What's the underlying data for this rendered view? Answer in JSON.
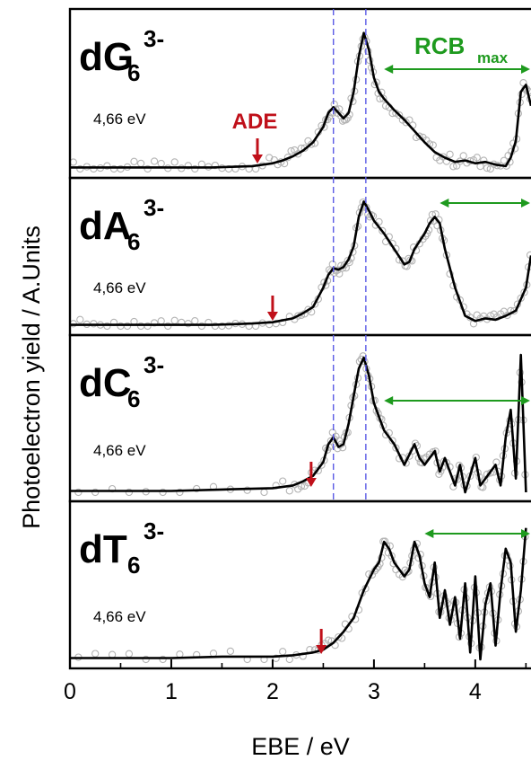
{
  "chart_data": {
    "type": "line",
    "xlabel": "EBE / eV",
    "ylabel": "Photoelectron yield / A.Units",
    "xlim": [
      0,
      4.55
    ],
    "xticks": [
      "0",
      "1",
      "2",
      "3",
      "4"
    ],
    "xtick_values": [
      0,
      1,
      2,
      3,
      4
    ],
    "grid": false,
    "dashed_reference_lines_x": [
      2.6,
      2.92
    ],
    "annotations": {
      "ade_text": "ADE",
      "rcb_main": "RCB",
      "rcb_sub": "max"
    },
    "colors": {
      "curve": "#000000",
      "points": "#b4b4b4",
      "ade": "#c0101a",
      "rcb": "#1e9a1e",
      "dashed": "#5a5ae6"
    },
    "panels": [
      {
        "label_main": "dG",
        "label_sub": "6",
        "label_sup": "3-",
        "energy": "4,66 eV",
        "ade_arrow_x": 1.85,
        "rcb_arrow": [
          3.1,
          4.55
        ],
        "x": [
          0,
          0.2,
          0.4,
          0.6,
          0.8,
          1.0,
          1.2,
          1.4,
          1.6,
          1.8,
          2.0,
          2.1,
          2.2,
          2.3,
          2.4,
          2.5,
          2.55,
          2.6,
          2.65,
          2.7,
          2.75,
          2.8,
          2.85,
          2.9,
          2.95,
          3.0,
          3.05,
          3.1,
          3.2,
          3.3,
          3.4,
          3.5,
          3.6,
          3.7,
          3.8,
          3.9,
          4.0,
          4.1,
          4.2,
          4.3,
          4.35,
          4.4,
          4.45,
          4.5,
          4.55
        ],
        "y": [
          0.01,
          0.01,
          0.01,
          0.01,
          0.01,
          0.01,
          0.01,
          0.01,
          0.015,
          0.02,
          0.04,
          0.06,
          0.09,
          0.13,
          0.19,
          0.3,
          0.4,
          0.44,
          0.4,
          0.36,
          0.4,
          0.55,
          0.8,
          0.97,
          0.85,
          0.65,
          0.55,
          0.5,
          0.42,
          0.35,
          0.27,
          0.19,
          0.12,
          0.08,
          0.05,
          0.06,
          0.04,
          0.05,
          0.03,
          0.02,
          0.08,
          0.2,
          0.55,
          0.6,
          0.45
        ]
      },
      {
        "label_main": "dA",
        "label_sub": "6",
        "label_sup": "3-",
        "energy": "4,66 eV",
        "ade_arrow_x": 2.0,
        "rcb_arrow": [
          3.65,
          4.55
        ],
        "x": [
          0,
          0.2,
          0.4,
          0.6,
          0.8,
          1.0,
          1.2,
          1.4,
          1.6,
          1.8,
          2.0,
          2.2,
          2.3,
          2.4,
          2.5,
          2.55,
          2.6,
          2.65,
          2.7,
          2.75,
          2.8,
          2.85,
          2.9,
          2.95,
          3.0,
          3.1,
          3.2,
          3.3,
          3.35,
          3.4,
          3.5,
          3.55,
          3.6,
          3.65,
          3.7,
          3.8,
          3.9,
          4.0,
          4.1,
          4.2,
          4.3,
          4.4,
          4.5,
          4.55
        ],
        "y": [
          0.01,
          0.01,
          0.01,
          0.01,
          0.01,
          0.01,
          0.01,
          0.01,
          0.015,
          0.02,
          0.03,
          0.06,
          0.1,
          0.15,
          0.3,
          0.4,
          0.45,
          0.44,
          0.46,
          0.52,
          0.62,
          0.85,
          0.97,
          0.9,
          0.82,
          0.72,
          0.6,
          0.48,
          0.5,
          0.6,
          0.72,
          0.8,
          0.85,
          0.8,
          0.6,
          0.3,
          0.08,
          0.04,
          0.06,
          0.05,
          0.08,
          0.12,
          0.3,
          0.55
        ]
      },
      {
        "label_main": "dC",
        "label_sub": "6",
        "label_sup": "3-",
        "energy": "4,66 eV",
        "ade_arrow_x": 2.38,
        "rcb_arrow": [
          3.1,
          4.55
        ],
        "x": [
          0,
          0.5,
          1.0,
          1.5,
          2.0,
          2.2,
          2.3,
          2.4,
          2.5,
          2.55,
          2.6,
          2.65,
          2.7,
          2.75,
          2.8,
          2.85,
          2.9,
          2.95,
          3.0,
          3.05,
          3.1,
          3.2,
          3.3,
          3.4,
          3.45,
          3.5,
          3.6,
          3.65,
          3.7,
          3.8,
          3.85,
          3.9,
          4.0,
          4.05,
          4.1,
          4.2,
          4.25,
          4.3,
          4.35,
          4.4,
          4.45,
          4.5
        ],
        "y": [
          0.01,
          0.01,
          0.01,
          0.02,
          0.03,
          0.05,
          0.08,
          0.12,
          0.22,
          0.35,
          0.4,
          0.33,
          0.35,
          0.5,
          0.7,
          0.9,
          0.98,
          0.85,
          0.65,
          0.55,
          0.45,
          0.35,
          0.2,
          0.35,
          0.25,
          0.2,
          0.3,
          0.15,
          0.25,
          0.05,
          0.2,
          0.0,
          0.25,
          0.05,
          0.1,
          0.2,
          0.05,
          0.4,
          0.6,
          0.1,
          1.0,
          0.0
        ]
      },
      {
        "label_main": "dT",
        "label_sub": "6",
        "label_sup": "3-",
        "energy": "4,66 eV",
        "ade_arrow_x": 2.48,
        "rcb_arrow": [
          3.5,
          4.55
        ],
        "x": [
          0,
          0.5,
          1.0,
          1.5,
          2.0,
          2.2,
          2.4,
          2.5,
          2.6,
          2.7,
          2.8,
          2.9,
          3.0,
          3.05,
          3.1,
          3.15,
          3.2,
          3.3,
          3.35,
          3.4,
          3.45,
          3.5,
          3.55,
          3.6,
          3.65,
          3.7,
          3.75,
          3.8,
          3.85,
          3.9,
          3.95,
          4.0,
          4.05,
          4.1,
          4.15,
          4.2,
          4.25,
          4.3,
          4.35,
          4.4,
          4.45,
          4.5
        ],
        "y": [
          0.01,
          0.01,
          0.01,
          0.02,
          0.02,
          0.03,
          0.05,
          0.07,
          0.12,
          0.2,
          0.3,
          0.5,
          0.65,
          0.7,
          0.85,
          0.8,
          0.7,
          0.6,
          0.65,
          0.85,
          0.75,
          0.55,
          0.45,
          0.7,
          0.3,
          0.5,
          0.25,
          0.45,
          0.15,
          0.55,
          0.05,
          0.6,
          0.0,
          0.4,
          0.55,
          0.1,
          0.5,
          0.8,
          0.7,
          0.2,
          0.5,
          0.95
        ]
      }
    ]
  }
}
